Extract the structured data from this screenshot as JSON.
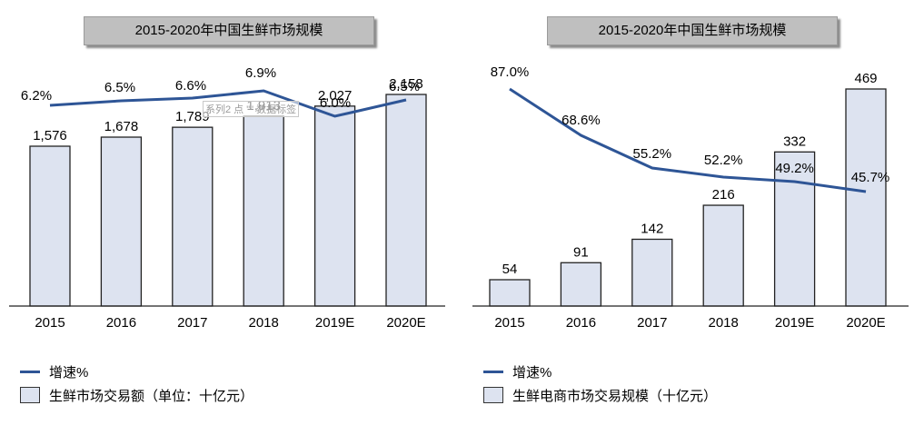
{
  "colors": {
    "bar_fill": "#dde3f0",
    "bar_stroke": "#222222",
    "line": "#2e5596",
    "title_bg": "#bfbfbf"
  },
  "tooltip": "系列2 点 \"\" 数据标签",
  "chart_data": [
    {
      "type": "bar",
      "title": "2015-2020年中国生鲜市场规模",
      "categories": [
        "2015",
        "2016",
        "2017",
        "2018",
        "2019E",
        "2020E"
      ],
      "series": [
        {
          "name": "生鲜市场交易额（单位：十亿元）",
          "type": "bar",
          "values": [
            1576,
            1678,
            1789,
            1913,
            2027,
            2158
          ],
          "labels": [
            "1,576",
            "1,678",
            "1,789",
            "1,913",
            "2,027",
            "2,158"
          ]
        },
        {
          "name": "增速%",
          "type": "line",
          "values": [
            6.2,
            6.5,
            6.6,
            6.9,
            6.0,
            6.5
          ],
          "labels": [
            "6.2%",
            "6.5%",
            "6.6%",
            "6.9%",
            "6.0%",
            "6.5%"
          ]
        }
      ],
      "legend": {
        "line": "增速%",
        "bar": "生鲜市场交易额（单位：十亿元）"
      }
    },
    {
      "type": "bar",
      "title": "2015-2020年中国生鲜市场规模",
      "categories": [
        "2015",
        "2016",
        "2017",
        "2018",
        "2019E",
        "2020E"
      ],
      "series": [
        {
          "name": "生鲜电商市场交易规模（十亿元）",
          "type": "bar",
          "values": [
            54,
            91,
            142,
            216,
            332,
            469
          ],
          "labels": [
            "54",
            "91",
            "142",
            "216",
            "332",
            "469"
          ]
        },
        {
          "name": "增速%",
          "type": "line",
          "values": [
            87.0,
            68.6,
            55.2,
            52.2,
            49.2,
            45.7
          ],
          "labels": [
            "87.0%",
            "68.6%",
            "55.2%",
            "52.2%",
            "49.2%",
            "45.7%"
          ]
        }
      ],
      "legend": {
        "line": "增速%",
        "bar": "生鲜电商市场交易规模（十亿元）"
      }
    }
  ]
}
